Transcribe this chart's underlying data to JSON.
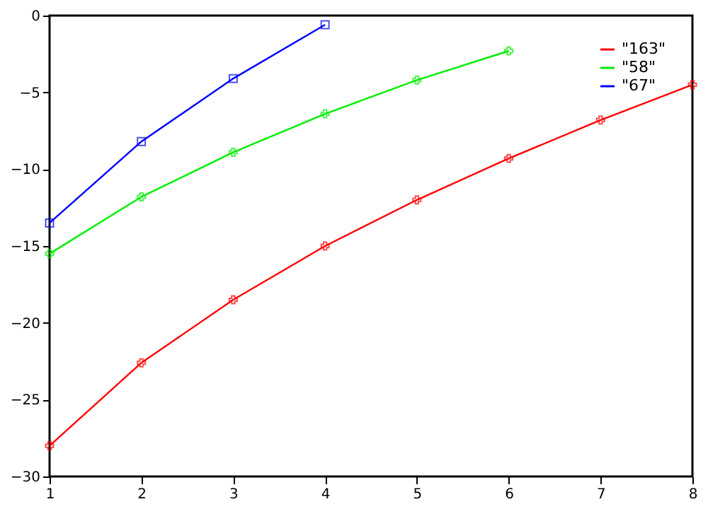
{
  "chart_data": {
    "type": "line",
    "x": [
      1,
      2,
      3,
      4,
      5,
      6,
      7,
      8
    ],
    "series": [
      {
        "name": "\"163\"",
        "color": "#ff0000",
        "marker": "cross",
        "values": [
          -28,
          -22.6,
          -18.5,
          -15.0,
          -12.0,
          -9.3,
          -6.8,
          -4.5
        ]
      },
      {
        "name": "\"58\"",
        "color": "#00ee00",
        "marker": "cross",
        "values": [
          -15.5,
          -11.8,
          -8.9,
          -6.4,
          -4.2,
          -2.3,
          null,
          null
        ]
      },
      {
        "name": "\"67\"",
        "color": "#0000ff",
        "marker": "square",
        "values": [
          -13.5,
          -8.2,
          -4.1,
          -0.6,
          null,
          null,
          null,
          null
        ]
      }
    ],
    "xlim": [
      1,
      8
    ],
    "xticks": [
      1,
      2,
      3,
      4,
      5,
      6,
      7,
      8
    ],
    "ylim": [
      -30,
      0
    ],
    "yticks": [
      -30,
      -25,
      -20,
      -15,
      -10,
      -5,
      0
    ],
    "grid": false,
    "legend": "top right",
    "line_style": "solid"
  }
}
